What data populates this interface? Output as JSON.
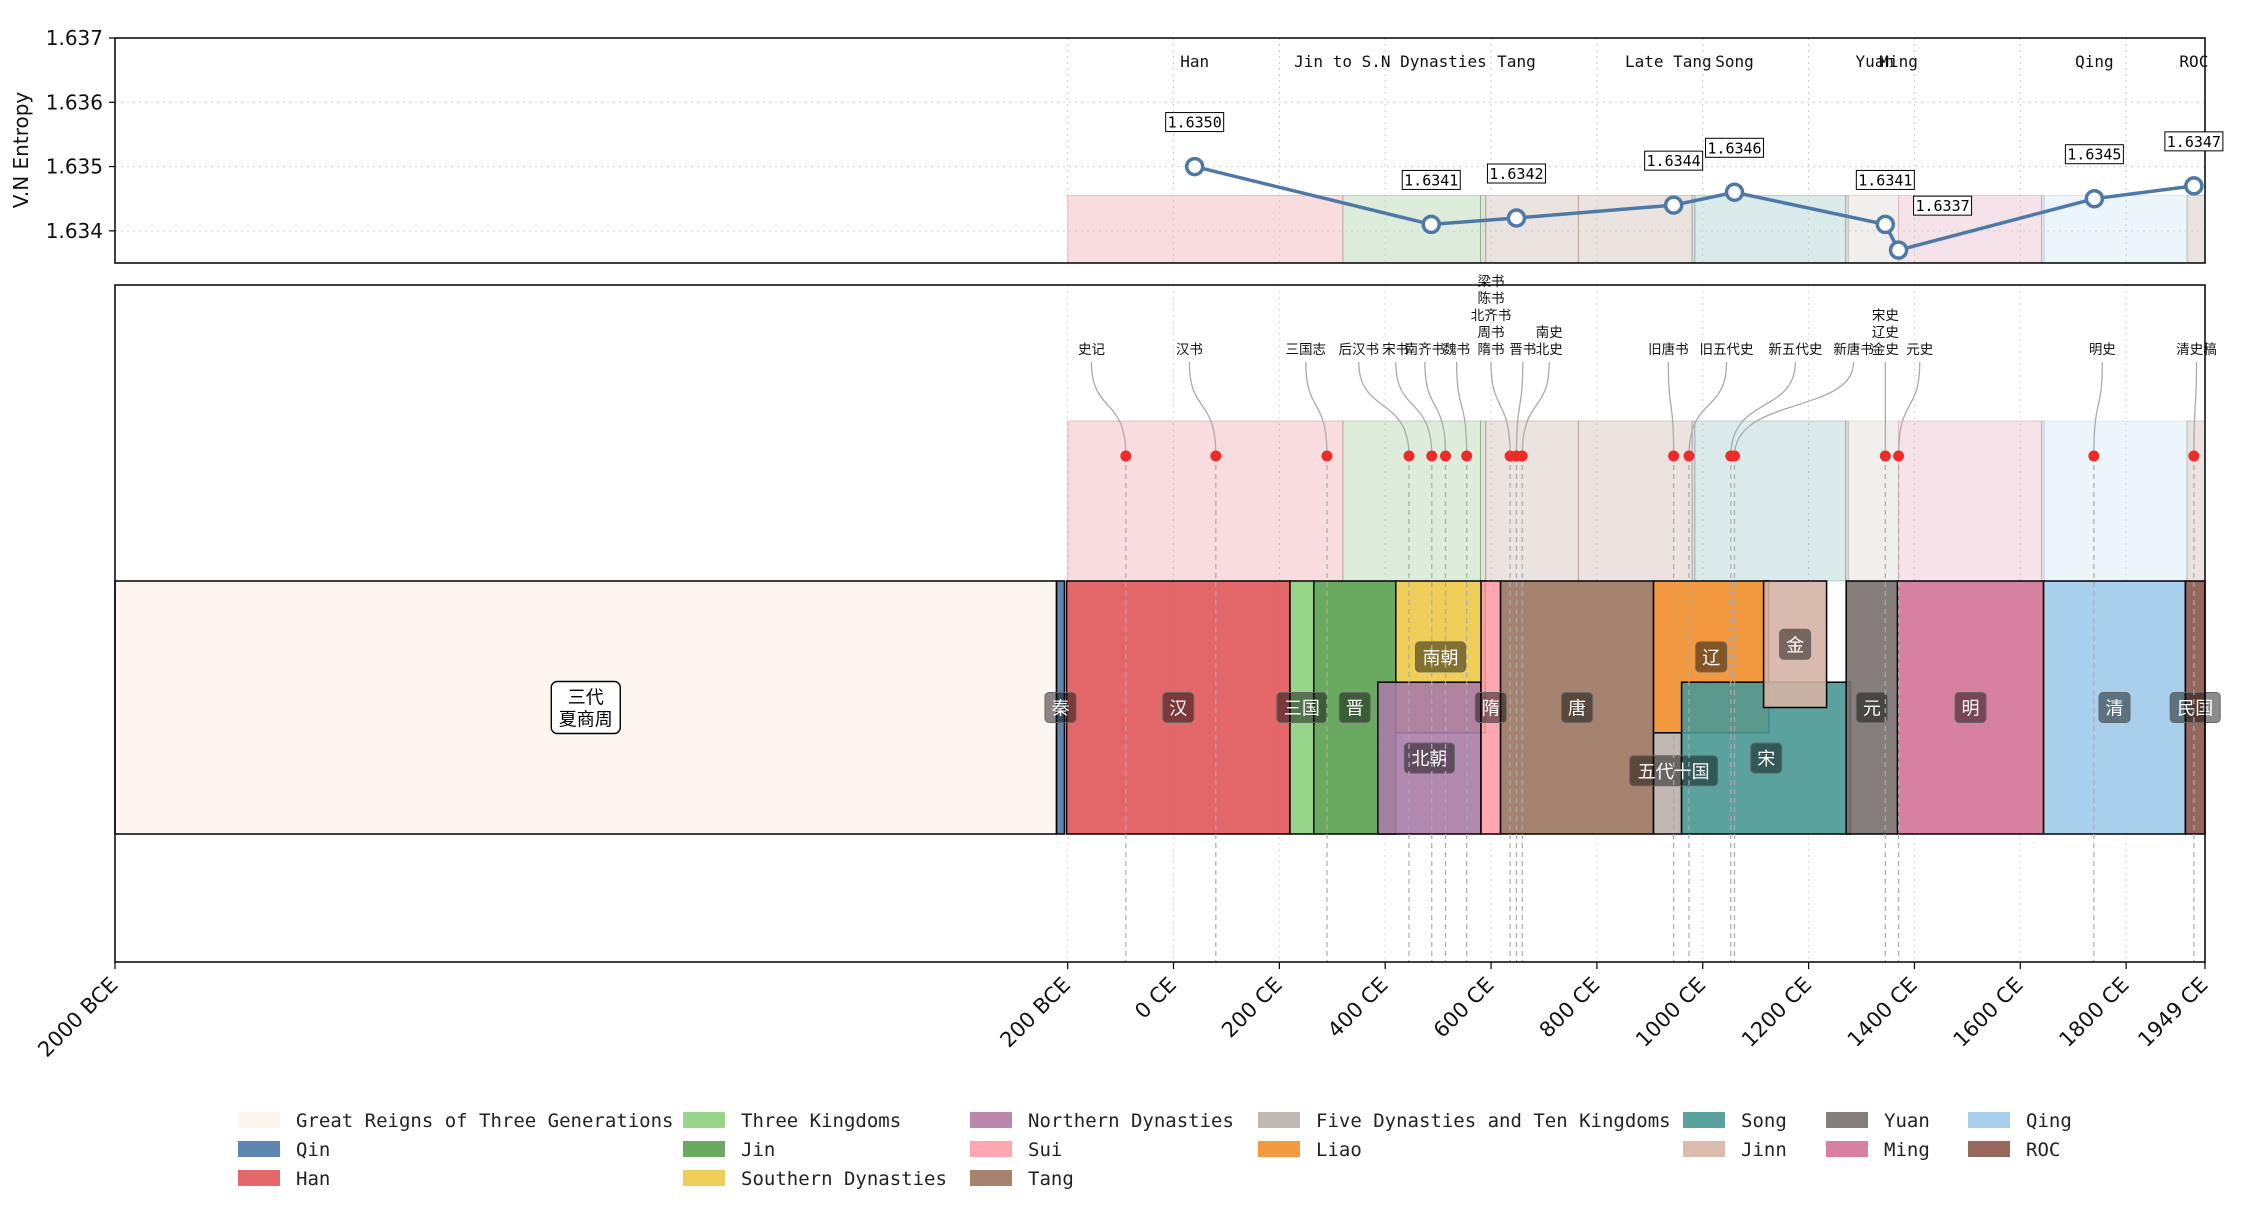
{
  "chart_data": [
    {
      "type": "line",
      "ylabel": "V.N Entropy",
      "ylim": [
        1.6335,
        1.637
      ],
      "yticks": [
        "1.634",
        "1.635",
        "1.636",
        "1.637"
      ],
      "series": [
        {
          "points": [
            {
              "x": 40,
              "y": 1.635,
              "label": "1.6350"
            },
            {
              "x": 487,
              "y": 1.6341,
              "label": "1.6341"
            },
            {
              "x": 648,
              "y": 1.6342,
              "label": "1.6342"
            },
            {
              "x": 945,
              "y": 1.6344,
              "label": "1.6344"
            },
            {
              "x": 1060,
              "y": 1.6346,
              "label": "1.6346"
            },
            {
              "x": 1345,
              "y": 1.6341,
              "label": "1.6341"
            },
            {
              "x": 1370,
              "y": 1.6337,
              "label": "1.6337"
            },
            {
              "x": 1740,
              "y": 1.6345,
              "label": "1.6345"
            },
            {
              "x": 1928,
              "y": 1.6347,
              "label": "1.6347"
            }
          ]
        }
      ],
      "era_labels": [
        {
          "x": 40,
          "text": "Han"
        },
        {
          "x": 410,
          "text": "Jin to S.N Dynasties"
        },
        {
          "x": 648,
          "text": "Tang"
        },
        {
          "x": 935,
          "text": "Late Tang"
        },
        {
          "x": 1060,
          "text": "Song"
        },
        {
          "x": 1325,
          "text": "Yuan"
        },
        {
          "x": 1370,
          "text": "Ming"
        },
        {
          "x": 1740,
          "text": "Qing"
        },
        {
          "x": 1928,
          "text": "ROC"
        }
      ]
    },
    {
      "type": "timeline",
      "xlim": [
        -2000,
        1949
      ],
      "xticks": [
        {
          "value": -2000,
          "label": "2000 BCE"
        },
        {
          "value": -200,
          "label": "200 BCE"
        },
        {
          "value": 0,
          "label": "0 CE"
        },
        {
          "value": 200,
          "label": "200 CE"
        },
        {
          "value": 400,
          "label": "400 CE"
        },
        {
          "value": 600,
          "label": "600 CE"
        },
        {
          "value": 800,
          "label": "800 CE"
        },
        {
          "value": 1000,
          "label": "1000 CE"
        },
        {
          "value": 1200,
          "label": "1200 CE"
        },
        {
          "value": 1400,
          "label": "1400 CE"
        },
        {
          "value": 1600,
          "label": "1600 CE"
        },
        {
          "value": 1800,
          "label": "1800 CE"
        },
        {
          "value": 1949,
          "label": "1949 CE"
        }
      ],
      "background_bands": [
        {
          "start": -200,
          "end": 320,
          "color": "#e15759"
        },
        {
          "start": 320,
          "end": 580,
          "color": "#59a14f"
        },
        {
          "start": 580,
          "end": 590,
          "color": "#5c7a3f"
        },
        {
          "start": 590,
          "end": 765,
          "color": "#9c755f"
        },
        {
          "start": 765,
          "end": 980,
          "color": "#9c755f"
        },
        {
          "start": 980,
          "end": 985,
          "color": "#79706e"
        },
        {
          "start": 985,
          "end": 1270,
          "color": "#499894"
        },
        {
          "start": 1270,
          "end": 1275,
          "color": "#79706e"
        },
        {
          "start": 1275,
          "end": 1370,
          "color": "#b9b0ac"
        },
        {
          "start": 1370,
          "end": 1640,
          "color": "#d37295"
        },
        {
          "start": 1640,
          "end": 1645,
          "color": "#9d7bbd"
        },
        {
          "start": 1645,
          "end": 1915,
          "color": "#a0cbe8"
        },
        {
          "start": 1915,
          "end": 1949,
          "color": "#9c755f"
        }
      ],
      "dynasties": [
        {
          "name": "三代\n夏商周",
          "start": -2000,
          "end": -221,
          "row_top": 0,
          "row_bottom": 1,
          "color": "#fdf4ee",
          "label_y": 0.5,
          "boxed_white": true
        },
        {
          "name": "秦",
          "start": -221,
          "end": -206,
          "row_top": 0,
          "row_bottom": 1,
          "color": "#4e79a7",
          "label_y": 0.5
        },
        {
          "name": "汉",
          "start": -202,
          "end": 220,
          "row_top": 0,
          "row_bottom": 1,
          "color": "#e15759",
          "label_y": 0.5
        },
        {
          "name": "三国",
          "start": 220,
          "end": 265,
          "row_top": 0,
          "row_bottom": 1,
          "color": "#8cd17d",
          "label_y": 0.5
        },
        {
          "name": "晋",
          "start": 265,
          "end": 420,
          "row_top": 0,
          "row_bottom": 1,
          "color": "#59a14f",
          "label_y": 0.5
        },
        {
          "name": "南朝",
          "start": 420,
          "end": 589,
          "row_top": 0,
          "row_bottom": 0.6,
          "color": "#edc948",
          "label_y": 0.3
        },
        {
          "name": "北朝",
          "start": 386,
          "end": 581,
          "row_top": 0.4,
          "row_bottom": 1,
          "color": "#a87ca8",
          "label_y": 0.7
        },
        {
          "name": "隋",
          "start": 581,
          "end": 618,
          "row_top": 0,
          "row_bottom": 1,
          "color": "#ff9da7",
          "label_y": 0.5
        },
        {
          "name": "唐",
          "start": 618,
          "end": 907,
          "row_top": 0,
          "row_bottom": 1,
          "color": "#9c755f",
          "label_y": 0.5
        },
        {
          "name": "辽",
          "start": 907,
          "end": 1125,
          "row_top": 0,
          "row_bottom": 0.6,
          "color": "#f28e2b",
          "label_y": 0.3
        },
        {
          "name": "五代十国",
          "start": 907,
          "end": 960,
          "row_top": 0.6,
          "row_bottom": 1,
          "color": "#bab0ac",
          "label_y": 0.75,
          "label_x": 945
        },
        {
          "name": "宋",
          "start": 960,
          "end": 1279,
          "row_top": 0.4,
          "row_bottom": 1,
          "color": "#499894",
          "label_y": 0.7,
          "label_x": 1120
        },
        {
          "name": "金",
          "start": 1115,
          "end": 1234,
          "row_top": 0,
          "row_bottom": 0.5,
          "color": "#d4b4a5",
          "label_y": 0.25
        },
        {
          "name": "元",
          "start": 1271,
          "end": 1368,
          "row_top": 0,
          "row_bottom": 1,
          "color": "#79706e",
          "label_y": 0.5
        },
        {
          "name": "明",
          "start": 1368,
          "end": 1644,
          "row_top": 0,
          "row_bottom": 1,
          "color": "#d37295",
          "label_y": 0.5
        },
        {
          "name": "清",
          "start": 1644,
          "end": 1912,
          "row_top": 0,
          "row_bottom": 1,
          "color": "#9ecae9",
          "label_y": 0.5
        },
        {
          "name": "民国",
          "start": 1912,
          "end": 1949,
          "row_top": 0,
          "row_bottom": 1,
          "color": "#8c564b",
          "label_y": 0.5
        }
      ],
      "books": [
        {
          "title": "史记",
          "x": -90,
          "label_x": -155,
          "lines": [
            "史记"
          ]
        },
        {
          "title": "汉书",
          "x": 80,
          "label_x": 30,
          "lines": [
            "汉书"
          ]
        },
        {
          "title": "三国志",
          "x": 290,
          "label_x": 250,
          "lines": [
            "三国志"
          ]
        },
        {
          "title": "后汉书",
          "x": 445,
          "label_x": 350,
          "lines": [
            "后汉书"
          ]
        },
        {
          "title": "宋书",
          "x": 488,
          "label_x": 420,
          "lines": [
            "宋书"
          ]
        },
        {
          "title": "南齐书",
          "x": 514,
          "label_x": 475,
          "lines": [
            "南齐书"
          ]
        },
        {
          "title": "魏书",
          "x": 554,
          "label_x": 535,
          "lines": [
            "魏书"
          ]
        },
        {
          "title": "梁书 陈书 北齐书 周书 隋书",
          "x": 636,
          "label_x": 600,
          "lines": [
            "梁书",
            "陈书",
            "北齐书",
            "周书",
            "隋书"
          ]
        },
        {
          "title": "晋书",
          "x": 648,
          "label_x": 660,
          "lines": [
            "晋书"
          ]
        },
        {
          "title": "南史 北史",
          "x": 659,
          "label_x": 710,
          "lines": [
            "南史",
            "北史"
          ]
        },
        {
          "title": "旧唐书",
          "x": 945,
          "label_x": 935,
          "lines": [
            "旧唐书"
          ]
        },
        {
          "title": "旧五代史",
          "x": 974,
          "label_x": 1045,
          "lines": [
            "旧五代史"
          ]
        },
        {
          "title": "新五代史",
          "x": 1053,
          "label_x": 1175,
          "lines": [
            "新五代史"
          ]
        },
        {
          "title": "新唐书",
          "x": 1060,
          "label_x": 1285,
          "lines": [
            "新唐书"
          ]
        },
        {
          "title": "宋史 辽史 金史",
          "x": 1345,
          "label_x": 1345,
          "lines": [
            "宋史",
            "辽史",
            "金史"
          ]
        },
        {
          "title": "元史",
          "x": 1370,
          "label_x": 1410,
          "lines": [
            "元史"
          ]
        },
        {
          "title": "明史",
          "x": 1739,
          "label_x": 1755,
          "lines": [
            "明史"
          ]
        },
        {
          "title": "清史稿",
          "x": 1928,
          "label_x": 1933,
          "lines": [
            "清史稿"
          ]
        }
      ]
    }
  ],
  "legend": [
    {
      "label": "Great Reigns of Three Generations",
      "color": "#fdf4ee"
    },
    {
      "label": "Qin",
      "color": "#4e79a7"
    },
    {
      "label": "Han",
      "color": "#e15759"
    },
    {
      "label": "Three Kingdoms",
      "color": "#8cd17d"
    },
    {
      "label": "Jin",
      "color": "#59a14f"
    },
    {
      "label": "Southern Dynasties",
      "color": "#edc948"
    },
    {
      "label": "Northern Dynasties",
      "color": "#b07aa1"
    },
    {
      "label": "Sui",
      "color": "#ff9da7"
    },
    {
      "label": "Tang",
      "color": "#9c755f"
    },
    {
      "label": "Five Dynasties and Ten Kingdoms",
      "color": "#bab0ac"
    },
    {
      "label": "Liao",
      "color": "#f28e2b"
    },
    {
      "label": "Song",
      "color": "#499894"
    },
    {
      "label": "Jinn",
      "color": "#d7b5a6"
    },
    {
      "label": "Yuan",
      "color": "#79706e"
    },
    {
      "label": "Ming",
      "color": "#d37295"
    },
    {
      "label": "Qing",
      "color": "#9ecae9"
    },
    {
      "label": "ROC",
      "color": "#8c564b"
    }
  ],
  "colors": {
    "line": "#4e79a7",
    "book_marker": "#ee2b2b"
  }
}
